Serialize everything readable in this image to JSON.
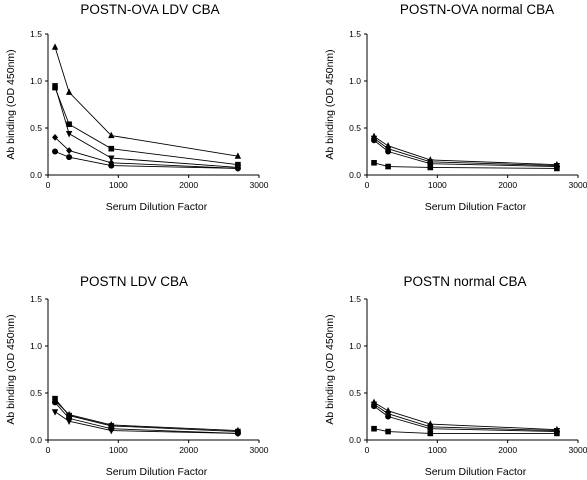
{
  "chart_data": [
    {
      "type": "line",
      "title": "POSTN-OVA LDV CBA",
      "xlabel": "Serum Dilution Factor",
      "ylabel": "Ab binding (OD 450nm)",
      "xlim": [
        0,
        3000
      ],
      "ylim": [
        0,
        1.5
      ],
      "xticks": [
        "0",
        "1000",
        "2000",
        "3000"
      ],
      "yticks": [
        "0.0",
        "0.5",
        "1.0",
        "1.5"
      ],
      "x": [
        100,
        300,
        900,
        2700
      ],
      "series": [
        {
          "marker": "triangle-up",
          "values": [
            1.36,
            0.88,
            0.42,
            0.2
          ]
        },
        {
          "marker": "square",
          "values": [
            0.93,
            0.54,
            0.28,
            0.11
          ]
        },
        {
          "marker": "triangle-down",
          "values": [
            0.95,
            0.44,
            0.18,
            0.08
          ]
        },
        {
          "marker": "diamond",
          "values": [
            0.4,
            0.26,
            0.13,
            0.07
          ]
        },
        {
          "marker": "circle",
          "values": [
            0.25,
            0.19,
            0.1,
            0.07
          ]
        }
      ]
    },
    {
      "type": "line",
      "title": "POSTN-OVA normal CBA",
      "xlabel": "Serum Dilution Factor",
      "ylabel": "Ab binding (OD 450nm)",
      "xlim": [
        0,
        3000
      ],
      "ylim": [
        0,
        1.5
      ],
      "xticks": [
        "0",
        "1000",
        "2000",
        "3000"
      ],
      "yticks": [
        "0.0",
        "0.5",
        "1.0",
        "1.5"
      ],
      "x": [
        100,
        300,
        900,
        2700
      ],
      "series": [
        {
          "marker": "triangle-up",
          "values": [
            0.41,
            0.31,
            0.16,
            0.11
          ]
        },
        {
          "marker": "triangle-down",
          "values": [
            0.39,
            0.28,
            0.14,
            0.1
          ]
        },
        {
          "marker": "circle",
          "values": [
            0.37,
            0.25,
            0.12,
            0.09
          ]
        },
        {
          "marker": "square",
          "values": [
            0.13,
            0.09,
            0.08,
            0.07
          ]
        }
      ]
    },
    {
      "type": "line",
      "title": "POSTN LDV CBA",
      "xlabel": "Serum Dilution Factor",
      "ylabel": "Ab binding (OD 450nm)",
      "xlim": [
        0,
        3000
      ],
      "ylim": [
        0,
        1.5
      ],
      "xticks": [
        "0",
        "1000",
        "2000",
        "3000"
      ],
      "yticks": [
        "0.0",
        "0.5",
        "1.0",
        "1.5"
      ],
      "x": [
        100,
        300,
        900,
        2700
      ],
      "series": [
        {
          "marker": "square",
          "values": [
            0.44,
            0.26,
            0.15,
            0.09
          ]
        },
        {
          "marker": "circle",
          "values": [
            0.4,
            0.23,
            0.12,
            0.07
          ]
        },
        {
          "marker": "triangle-down",
          "values": [
            0.3,
            0.2,
            0.1,
            0.07
          ]
        },
        {
          "marker": "triangle-up",
          "values": [
            0.42,
            0.27,
            0.16,
            0.1
          ]
        }
      ]
    },
    {
      "type": "line",
      "title": "POSTN normal CBA",
      "xlabel": "Serum Dilution Factor",
      "ylabel": "Ab binding (OD 450nm)",
      "xlim": [
        0,
        3000
      ],
      "ylim": [
        0,
        1.5
      ],
      "xticks": [
        "0",
        "1000",
        "2000",
        "3000"
      ],
      "yticks": [
        "0.0",
        "0.5",
        "1.0",
        "1.5"
      ],
      "x": [
        100,
        300,
        900,
        2700
      ],
      "series": [
        {
          "marker": "triangle-up",
          "values": [
            0.4,
            0.31,
            0.17,
            0.11
          ]
        },
        {
          "marker": "triangle-down",
          "values": [
            0.38,
            0.28,
            0.14,
            0.1
          ]
        },
        {
          "marker": "circle",
          "values": [
            0.36,
            0.25,
            0.12,
            0.09
          ]
        },
        {
          "marker": "square",
          "values": [
            0.12,
            0.09,
            0.07,
            0.07
          ]
        }
      ]
    }
  ]
}
